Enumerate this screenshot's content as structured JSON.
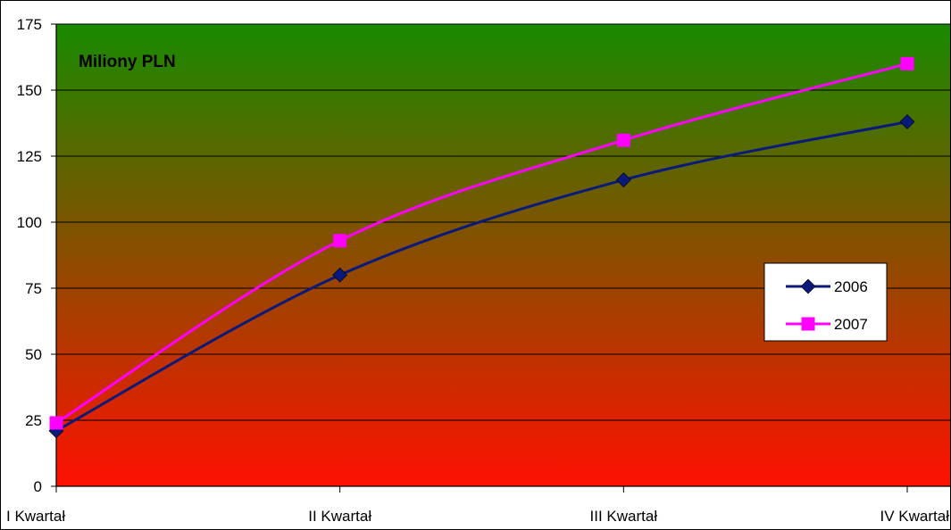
{
  "chart_data": {
    "type": "line",
    "title": "Miliony PLN",
    "categories": [
      "I Kwartał",
      "II Kwartał",
      "III Kwartał",
      "IV Kwartał"
    ],
    "series": [
      {
        "name": "2006",
        "values": [
          21,
          80,
          116,
          138
        ],
        "color": "#0a1a7a",
        "marker": "diamond"
      },
      {
        "name": "2007",
        "values": [
          24,
          93,
          131,
          160
        ],
        "color": "#ff00ff",
        "marker": "square"
      }
    ],
    "ylim": [
      0,
      175
    ],
    "yticks": [
      0,
      25,
      50,
      75,
      100,
      125,
      150,
      175
    ],
    "grid": true,
    "legend": "right",
    "background_gradient": [
      "#188a00",
      "#ff1000"
    ]
  }
}
